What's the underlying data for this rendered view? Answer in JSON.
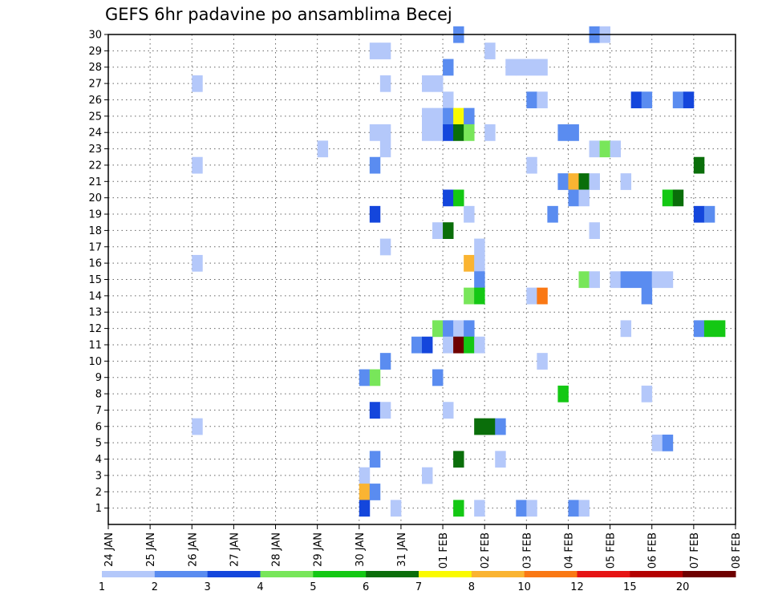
{
  "chart_data": {
    "type": "heatmap",
    "title": "GEFS 6hr padavine po ansamblima Becej",
    "xlabel": "",
    "ylabel": "",
    "x_ticks": [
      "24 JAN",
      "25 JAN",
      "26 JAN",
      "27 JAN",
      "28 JAN",
      "29 JAN",
      "30 JAN",
      "31 JAN",
      "01 FEB",
      "02 FEB",
      "03 FEB",
      "04 FEB",
      "05 FEB",
      "06 FEB",
      "07 FEB",
      "08 FEB"
    ],
    "y_ticks": [
      "1",
      "2",
      "3",
      "4",
      "5",
      "6",
      "7",
      "8",
      "9",
      "10",
      "11",
      "12",
      "13",
      "14",
      "15",
      "16",
      "17",
      "18",
      "19",
      "20",
      "21",
      "22",
      "23",
      "24",
      "25",
      "26",
      "27",
      "28",
      "29",
      "30"
    ],
    "x_range_steps": [
      0,
      60
    ],
    "y_range_members": [
      0,
      30
    ],
    "grid": true,
    "colorbar": {
      "labels": [
        "1",
        "2",
        "3",
        "4",
        "5",
        "6",
        "7",
        "8",
        "10",
        "12",
        "15",
        "20"
      ],
      "colors": [
        "#b4c8fa",
        "#5a8cf0",
        "#1446dc",
        "#78e65a",
        "#14c814",
        "#0a6e0a",
        "#fafa00",
        "#fab432",
        "#fa7814",
        "#e61414",
        "#b40000",
        "#6e0000"
      ]
    },
    "cells": [
      {
        "t": 46,
        "m": 30,
        "c": 2
      },
      {
        "t": 47,
        "m": 30,
        "c": 1
      },
      {
        "t": 33,
        "m": 30,
        "c": 2
      },
      {
        "t": 25,
        "m": 29,
        "c": 1
      },
      {
        "t": 26,
        "m": 29,
        "c": 1
      },
      {
        "t": 36,
        "m": 29,
        "c": 1
      },
      {
        "t": 32,
        "m": 28,
        "c": 2
      },
      {
        "t": 38,
        "m": 28,
        "c": 1
      },
      {
        "t": 39,
        "m": 28,
        "c": 1
      },
      {
        "t": 40,
        "m": 28,
        "c": 1
      },
      {
        "t": 41,
        "m": 28,
        "c": 1
      },
      {
        "t": 8,
        "m": 27,
        "c": 1
      },
      {
        "t": 26,
        "m": 27,
        "c": 1
      },
      {
        "t": 30,
        "m": 27,
        "c": 1
      },
      {
        "t": 31,
        "m": 27,
        "c": 1
      },
      {
        "t": 32,
        "m": 26,
        "c": 1
      },
      {
        "t": 40,
        "m": 26,
        "c": 2
      },
      {
        "t": 41,
        "m": 26,
        "c": 1
      },
      {
        "t": 50,
        "m": 26,
        "c": 3
      },
      {
        "t": 51,
        "m": 26,
        "c": 2
      },
      {
        "t": 54,
        "m": 26,
        "c": 2
      },
      {
        "t": 55,
        "m": 26,
        "c": 3
      },
      {
        "t": 30,
        "m": 25,
        "c": 1
      },
      {
        "t": 31,
        "m": 25,
        "c": 1
      },
      {
        "t": 32,
        "m": 25,
        "c": 2
      },
      {
        "t": 33,
        "m": 25,
        "c": 7
      },
      {
        "t": 34,
        "m": 25,
        "c": 2
      },
      {
        "t": 25,
        "m": 24,
        "c": 1
      },
      {
        "t": 26,
        "m": 24,
        "c": 1
      },
      {
        "t": 30,
        "m": 24,
        "c": 1
      },
      {
        "t": 31,
        "m": 24,
        "c": 1
      },
      {
        "t": 32,
        "m": 24,
        "c": 3
      },
      {
        "t": 33,
        "m": 24,
        "c": 6
      },
      {
        "t": 34,
        "m": 24,
        "c": 4
      },
      {
        "t": 36,
        "m": 24,
        "c": 1
      },
      {
        "t": 43,
        "m": 24,
        "c": 2
      },
      {
        "t": 44,
        "m": 24,
        "c": 2
      },
      {
        "t": 20,
        "m": 23,
        "c": 1
      },
      {
        "t": 26,
        "m": 23,
        "c": 1
      },
      {
        "t": 46,
        "m": 23,
        "c": 1
      },
      {
        "t": 47,
        "m": 23,
        "c": 4
      },
      {
        "t": 48,
        "m": 23,
        "c": 1
      },
      {
        "t": 8,
        "m": 22,
        "c": 1
      },
      {
        "t": 25,
        "m": 22,
        "c": 2
      },
      {
        "t": 40,
        "m": 22,
        "c": 1
      },
      {
        "t": 56,
        "m": 22,
        "c": 6
      },
      {
        "t": 43,
        "m": 21,
        "c": 2
      },
      {
        "t": 44,
        "m": 21,
        "c": 8
      },
      {
        "t": 45,
        "m": 21,
        "c": 6
      },
      {
        "t": 46,
        "m": 21,
        "c": 1
      },
      {
        "t": 49,
        "m": 21,
        "c": 1
      },
      {
        "t": 32,
        "m": 20,
        "c": 3
      },
      {
        "t": 33,
        "m": 20,
        "c": 5
      },
      {
        "t": 44,
        "m": 20,
        "c": 2
      },
      {
        "t": 45,
        "m": 20,
        "c": 1
      },
      {
        "t": 53,
        "m": 20,
        "c": 5
      },
      {
        "t": 54,
        "m": 20,
        "c": 6
      },
      {
        "t": 25,
        "m": 19,
        "c": 3
      },
      {
        "t": 34,
        "m": 19,
        "c": 1
      },
      {
        "t": 42,
        "m": 19,
        "c": 2
      },
      {
        "t": 56,
        "m": 19,
        "c": 3
      },
      {
        "t": 57,
        "m": 19,
        "c": 2
      },
      {
        "t": 31,
        "m": 18,
        "c": 1
      },
      {
        "t": 32,
        "m": 18,
        "c": 6
      },
      {
        "t": 46,
        "m": 18,
        "c": 1
      },
      {
        "t": 26,
        "m": 17,
        "c": 1
      },
      {
        "t": 35,
        "m": 17,
        "c": 1
      },
      {
        "t": 8,
        "m": 16,
        "c": 1
      },
      {
        "t": 34,
        "m": 16,
        "c": 8
      },
      {
        "t": 35,
        "m": 16,
        "c": 1
      },
      {
        "t": 35,
        "m": 15,
        "c": 2
      },
      {
        "t": 45,
        "m": 15,
        "c": 4
      },
      {
        "t": 46,
        "m": 15,
        "c": 1
      },
      {
        "t": 48,
        "m": 15,
        "c": 1
      },
      {
        "t": 49,
        "m": 15,
        "c": 2
      },
      {
        "t": 50,
        "m": 15,
        "c": 2
      },
      {
        "t": 51,
        "m": 15,
        "c": 2
      },
      {
        "t": 52,
        "m": 15,
        "c": 1
      },
      {
        "t": 53,
        "m": 15,
        "c": 1
      },
      {
        "t": 34,
        "m": 14,
        "c": 4
      },
      {
        "t": 35,
        "m": 14,
        "c": 5
      },
      {
        "t": 40,
        "m": 14,
        "c": 1
      },
      {
        "t": 41,
        "m": 14,
        "c": 9
      },
      {
        "t": 51,
        "m": 14,
        "c": 2
      },
      {
        "t": 31,
        "m": 12,
        "c": 4
      },
      {
        "t": 32,
        "m": 12,
        "c": 2
      },
      {
        "t": 33,
        "m": 12,
        "c": 1
      },
      {
        "t": 34,
        "m": 12,
        "c": 2
      },
      {
        "t": 49,
        "m": 12,
        "c": 1
      },
      {
        "t": 56,
        "m": 12,
        "c": 2
      },
      {
        "t": 57,
        "m": 12,
        "c": 5
      },
      {
        "t": 58,
        "m": 12,
        "c": 5
      },
      {
        "t": 29,
        "m": 11,
        "c": 2
      },
      {
        "t": 30,
        "m": 11,
        "c": 3
      },
      {
        "t": 32,
        "m": 11,
        "c": 1
      },
      {
        "t": 33,
        "m": 11,
        "c": 12
      },
      {
        "t": 34,
        "m": 11,
        "c": 5
      },
      {
        "t": 35,
        "m": 11,
        "c": 1
      },
      {
        "t": 26,
        "m": 10,
        "c": 2
      },
      {
        "t": 41,
        "m": 10,
        "c": 1
      },
      {
        "t": 24,
        "m": 9,
        "c": 2
      },
      {
        "t": 25,
        "m": 9,
        "c": 4
      },
      {
        "t": 31,
        "m": 9,
        "c": 2
      },
      {
        "t": 43,
        "m": 8,
        "c": 5
      },
      {
        "t": 51,
        "m": 8,
        "c": 1
      },
      {
        "t": 25,
        "m": 7,
        "c": 3
      },
      {
        "t": 26,
        "m": 7,
        "c": 1
      },
      {
        "t": 32,
        "m": 7,
        "c": 1
      },
      {
        "t": 8,
        "m": 6,
        "c": 1
      },
      {
        "t": 35,
        "m": 6,
        "c": 6
      },
      {
        "t": 36,
        "m": 6,
        "c": 6
      },
      {
        "t": 37,
        "m": 6,
        "c": 2
      },
      {
        "t": 52,
        "m": 5,
        "c": 1
      },
      {
        "t": 53,
        "m": 5,
        "c": 2
      },
      {
        "t": 25,
        "m": 4,
        "c": 2
      },
      {
        "t": 33,
        "m": 4,
        "c": 6
      },
      {
        "t": 37,
        "m": 4,
        "c": 1
      },
      {
        "t": 24,
        "m": 3,
        "c": 1
      },
      {
        "t": 30,
        "m": 3,
        "c": 1
      },
      {
        "t": 24,
        "m": 2,
        "c": 8
      },
      {
        "t": 25,
        "m": 2,
        "c": 2
      },
      {
        "t": 24,
        "m": 1,
        "c": 3
      },
      {
        "t": 27,
        "m": 1,
        "c": 1
      },
      {
        "t": 33,
        "m": 1,
        "c": 5
      },
      {
        "t": 35,
        "m": 1,
        "c": 1
      },
      {
        "t": 39,
        "m": 1,
        "c": 2
      },
      {
        "t": 40,
        "m": 1,
        "c": 1
      },
      {
        "t": 44,
        "m": 1,
        "c": 2
      },
      {
        "t": 45,
        "m": 1,
        "c": 1
      }
    ]
  }
}
